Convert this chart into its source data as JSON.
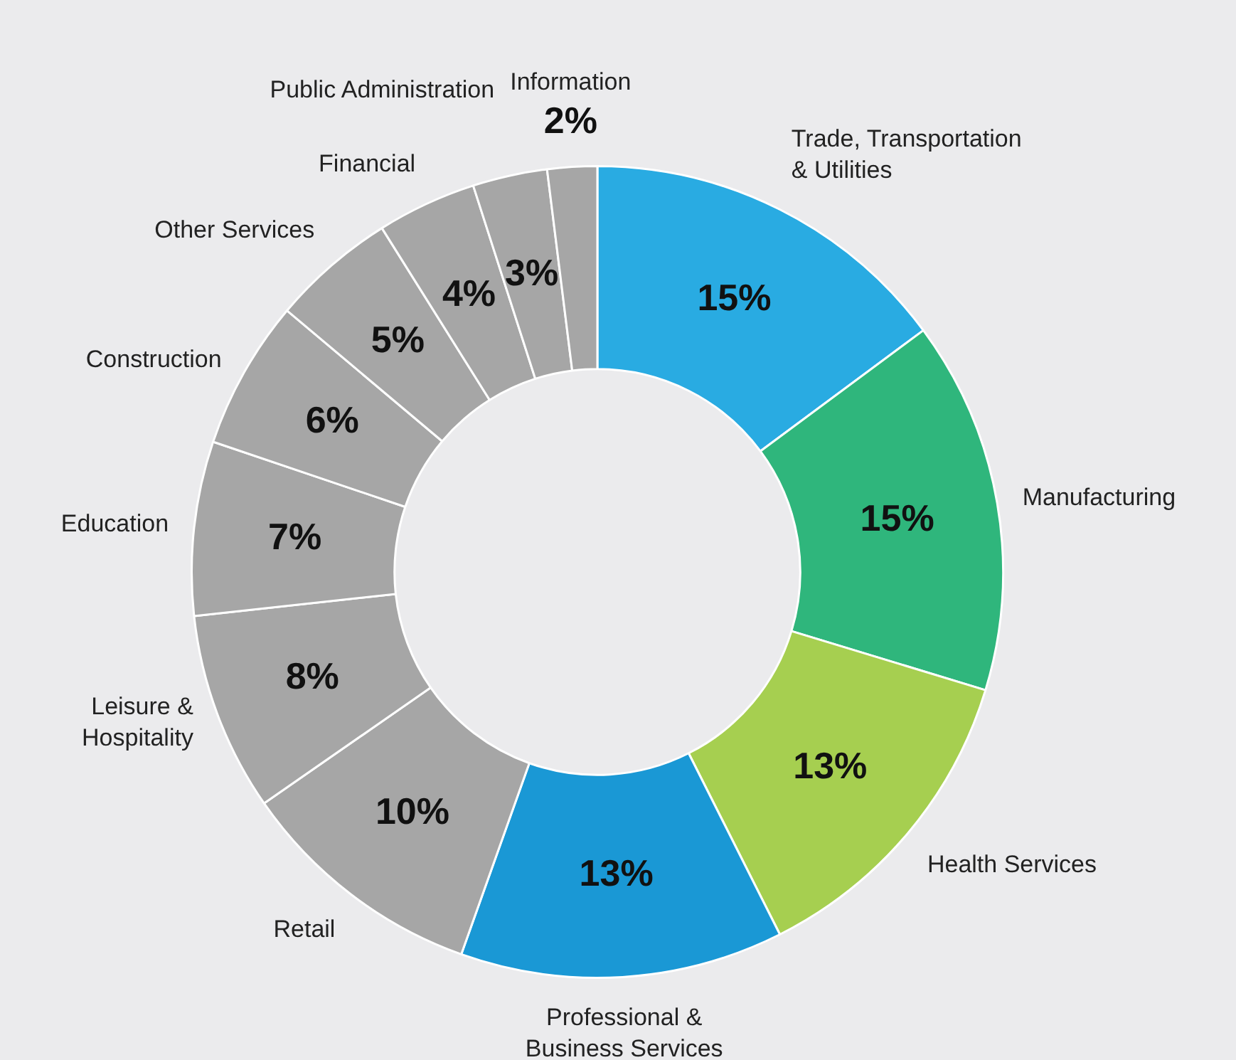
{
  "chart_data": {
    "type": "donut",
    "categories": [
      "Trade, Transportation & Utilities",
      "Manufacturing",
      "Health Services",
      "Professional & Business Services",
      "Retail",
      "Leisure & Hospitality",
      "Education",
      "Construction",
      "Other Services",
      "Financial",
      "Public Administration",
      "Information"
    ],
    "values": [
      15,
      15,
      13,
      13,
      10,
      8,
      7,
      6,
      5,
      4,
      3,
      2
    ],
    "colors": [
      "#29abe2",
      "#2fb67c",
      "#a6cf50",
      "#1a98d5",
      "#a6a6a6",
      "#a6a6a6",
      "#a6a6a6",
      "#a6a6a6",
      "#a6a6a6",
      "#a6a6a6",
      "#a6a6a6",
      "#a6a6a6"
    ],
    "value_labels": [
      "15%",
      "15%",
      "13%",
      "13%",
      "10%",
      "8%",
      "7%",
      "6%",
      "5%",
      "4%",
      "3%",
      "2%"
    ],
    "legend": false
  }
}
